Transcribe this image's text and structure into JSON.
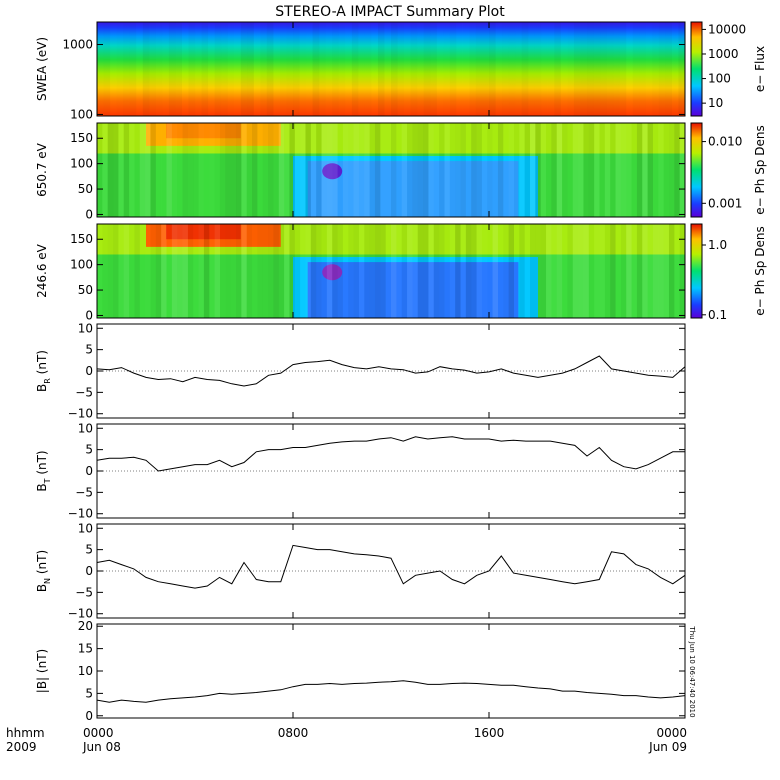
{
  "title": "STEREO-A IMPACT Summary Plot",
  "timestamp_note": "Thu Jun 10 06:47:40 2010",
  "x_axis": {
    "corner_label_top": "hhmm",
    "corner_label_bottom": "2009",
    "ticks": [
      {
        "hours": 0,
        "label": "0000",
        "sublabel": "Jun 08"
      },
      {
        "hours": 8,
        "label": "0800",
        "sublabel": ""
      },
      {
        "hours": 16,
        "label": "1600",
        "sublabel": ""
      },
      {
        "hours": 24,
        "label": "0000",
        "sublabel": "Jun 09"
      }
    ],
    "range_hours": [
      0,
      24
    ]
  },
  "chart_data": [
    {
      "type": "heatmap",
      "ylabel": "SWEA (eV)",
      "yscale": "log",
      "ylim": [
        95,
        2100
      ],
      "yticks": [
        100,
        1000
      ],
      "ytick_labels": [
        "100",
        "1000"
      ],
      "colorbar": {
        "label": "e− Flux",
        "scale": "log",
        "range": [
          3,
          20000
        ],
        "ticks": [
          10,
          100,
          1000,
          10000
        ],
        "tick_labels": [
          "10",
          "100",
          "1000",
          "10000"
        ]
      },
      "description_values": {
        "low_energy_flux": 10000,
        "mid_energy_flux": 100,
        "high_energy_flux": 5
      }
    },
    {
      "type": "heatmap",
      "ylabel": "650.7 eV",
      "ylim": [
        -5,
        180
      ],
      "yticks": [
        0,
        50,
        100,
        150
      ],
      "ytick_labels": [
        "0",
        "50",
        "100",
        "150"
      ],
      "colorbar": {
        "label": "e− Ph Sp Dens",
        "scale": "log",
        "range": [
          0.0006,
          0.02
        ],
        "ticks": [
          0.001,
          0.01
        ],
        "tick_labels": [
          "0.001",
          "0.010"
        ]
      },
      "depletion_interval_hours": [
        8.0,
        18.0
      ],
      "enhancement_interval_hours": [
        2.0,
        7.5
      ]
    },
    {
      "type": "heatmap",
      "ylabel": "246.6 eV",
      "ylim": [
        -5,
        180
      ],
      "yticks": [
        0,
        50,
        100,
        150
      ],
      "ytick_labels": [
        "0",
        "50",
        "100",
        "150"
      ],
      "colorbar": {
        "label": "e− Ph Sp Dens",
        "scale": "log",
        "range": [
          0.09,
          2.0
        ],
        "ticks": [
          0.1,
          1.0
        ],
        "tick_labels": [
          "0.1",
          "1.0"
        ]
      },
      "depletion_interval_hours": [
        8.0,
        18.0
      ],
      "enhancement_interval_hours": [
        2.0,
        7.5
      ]
    },
    {
      "type": "line",
      "ylabel_main": "B",
      "ylabel_sub": "R",
      "ylabel_unit": " (nT)",
      "ylim": [
        -11,
        11
      ],
      "yticks": [
        -10,
        -5,
        0,
        5,
        10
      ],
      "ytick_labels": [
        "−10",
        "−5",
        "0",
        "5",
        "10"
      ],
      "x_hours": [
        0,
        0.5,
        1,
        1.5,
        2,
        2.5,
        3,
        3.5,
        4,
        4.5,
        5,
        5.5,
        6,
        6.5,
        7,
        7.5,
        8,
        8.5,
        9,
        9.5,
        10,
        10.5,
        11,
        11.5,
        12,
        12.5,
        13,
        13.5,
        14,
        14.5,
        15,
        15.5,
        16,
        16.5,
        17,
        17.5,
        18,
        18.5,
        19,
        19.5,
        20,
        20.5,
        21,
        21.5,
        22,
        22.5,
        23,
        23.5,
        24
      ],
      "values": [
        0.5,
        0.3,
        0.8,
        -0.5,
        -1.5,
        -2.0,
        -1.8,
        -2.5,
        -1.5,
        -2.0,
        -2.2,
        -3.0,
        -3.5,
        -3.0,
        -1.0,
        -0.5,
        1.5,
        2.0,
        2.2,
        2.5,
        1.5,
        0.8,
        0.5,
        1.0,
        0.5,
        0.3,
        -0.5,
        -0.2,
        1.0,
        0.5,
        0.2,
        -0.5,
        -0.2,
        0.5,
        -0.5,
        -1.0,
        -1.5,
        -1.0,
        -0.5,
        0.5,
        2.0,
        3.5,
        0.5,
        0.0,
        -0.5,
        -1.0,
        -1.2,
        -1.5,
        1.0
      ]
    },
    {
      "type": "line",
      "ylabel_main": "B",
      "ylabel_sub": "T",
      "ylabel_unit": " (nT)",
      "ylim": [
        -11,
        11
      ],
      "yticks": [
        -10,
        -5,
        0,
        5,
        10
      ],
      "ytick_labels": [
        "−10",
        "−5",
        "0",
        "5",
        "10"
      ],
      "x_hours": [
        0,
        0.5,
        1,
        1.5,
        2,
        2.5,
        3,
        3.5,
        4,
        4.5,
        5,
        5.5,
        6,
        6.5,
        7,
        7.5,
        8,
        8.5,
        9,
        9.5,
        10,
        10.5,
        11,
        11.5,
        12,
        12.5,
        13,
        13.5,
        14,
        14.5,
        15,
        15.5,
        16,
        16.5,
        17,
        17.5,
        18,
        18.5,
        19,
        19.5,
        20,
        20.5,
        21,
        21.5,
        22,
        22.5,
        23,
        23.5,
        24
      ],
      "values": [
        2.5,
        3.0,
        3.0,
        3.2,
        2.5,
        0.0,
        0.5,
        1.0,
        1.5,
        1.5,
        2.5,
        1.0,
        2.0,
        4.5,
        5.0,
        5.0,
        5.5,
        5.5,
        6.0,
        6.5,
        6.8,
        7.0,
        7.0,
        7.5,
        7.8,
        7.0,
        8.0,
        7.5,
        7.8,
        8.0,
        7.5,
        7.5,
        7.5,
        7.0,
        7.2,
        7.0,
        7.0,
        7.0,
        6.5,
        6.0,
        3.5,
        5.5,
        2.5,
        1.0,
        0.5,
        1.5,
        3.0,
        4.5,
        4.5
      ]
    },
    {
      "type": "line",
      "ylabel_main": "B",
      "ylabel_sub": "N",
      "ylabel_unit": " (nT)",
      "ylim": [
        -11,
        11
      ],
      "yticks": [
        -10,
        -5,
        0,
        5,
        10
      ],
      "ytick_labels": [
        "−10",
        "−5",
        "0",
        "5",
        "10"
      ],
      "x_hours": [
        0,
        0.5,
        1,
        1.5,
        2,
        2.5,
        3,
        3.5,
        4,
        4.5,
        5,
        5.5,
        6,
        6.5,
        7,
        7.5,
        8,
        8.5,
        9,
        9.5,
        10,
        10.5,
        11,
        11.5,
        12,
        12.5,
        13,
        13.5,
        14,
        14.5,
        15,
        15.5,
        16,
        16.5,
        17,
        17.5,
        18,
        18.5,
        19,
        19.5,
        20,
        20.5,
        21,
        21.5,
        22,
        22.5,
        23,
        23.5,
        24
      ],
      "values": [
        2.0,
        2.5,
        1.5,
        0.5,
        -1.5,
        -2.5,
        -3.0,
        -3.5,
        -4.0,
        -3.5,
        -1.5,
        -3.0,
        2.0,
        -2.0,
        -2.5,
        -2.5,
        6.0,
        5.5,
        5.0,
        5.0,
        4.5,
        4.0,
        3.8,
        3.5,
        3.0,
        -3.0,
        -1.0,
        -0.5,
        0.0,
        -2.0,
        -3.0,
        -1.0,
        0.0,
        3.5,
        -0.5,
        -1.0,
        -1.5,
        -2.0,
        -2.5,
        -3.0,
        -2.5,
        -2.0,
        4.5,
        4.0,
        1.5,
        0.5,
        -1.5,
        -3.0,
        -1.0
      ]
    },
    {
      "type": "line",
      "ylabel": "|B| (nT)",
      "ylim": [
        -0.5,
        20.5
      ],
      "yticks": [
        0,
        5,
        10,
        15,
        20
      ],
      "ytick_labels": [
        "0",
        "5",
        "10",
        "15",
        "20"
      ],
      "x_hours": [
        0,
        0.5,
        1,
        1.5,
        2,
        2.5,
        3,
        3.5,
        4,
        4.5,
        5,
        5.5,
        6,
        6.5,
        7,
        7.5,
        8,
        8.5,
        9,
        9.5,
        10,
        10.5,
        11,
        11.5,
        12,
        12.5,
        13,
        13.5,
        14,
        14.5,
        15,
        15.5,
        16,
        16.5,
        17,
        17.5,
        18,
        18.5,
        19,
        19.5,
        20,
        20.5,
        21,
        21.5,
        22,
        22.5,
        23,
        23.5,
        24
      ],
      "values": [
        3.5,
        3.0,
        3.5,
        3.2,
        3.0,
        3.5,
        3.8,
        4.0,
        4.2,
        4.5,
        5.0,
        4.8,
        5.0,
        5.2,
        5.5,
        5.8,
        6.5,
        7.0,
        7.0,
        7.2,
        7.0,
        7.2,
        7.3,
        7.5,
        7.6,
        7.8,
        7.5,
        7.0,
        7.0,
        7.2,
        7.3,
        7.2,
        7.0,
        6.8,
        6.8,
        6.5,
        6.2,
        6.0,
        5.5,
        5.5,
        5.2,
        5.0,
        4.8,
        4.5,
        4.5,
        4.2,
        4.0,
        4.2,
        4.5
      ]
    }
  ]
}
